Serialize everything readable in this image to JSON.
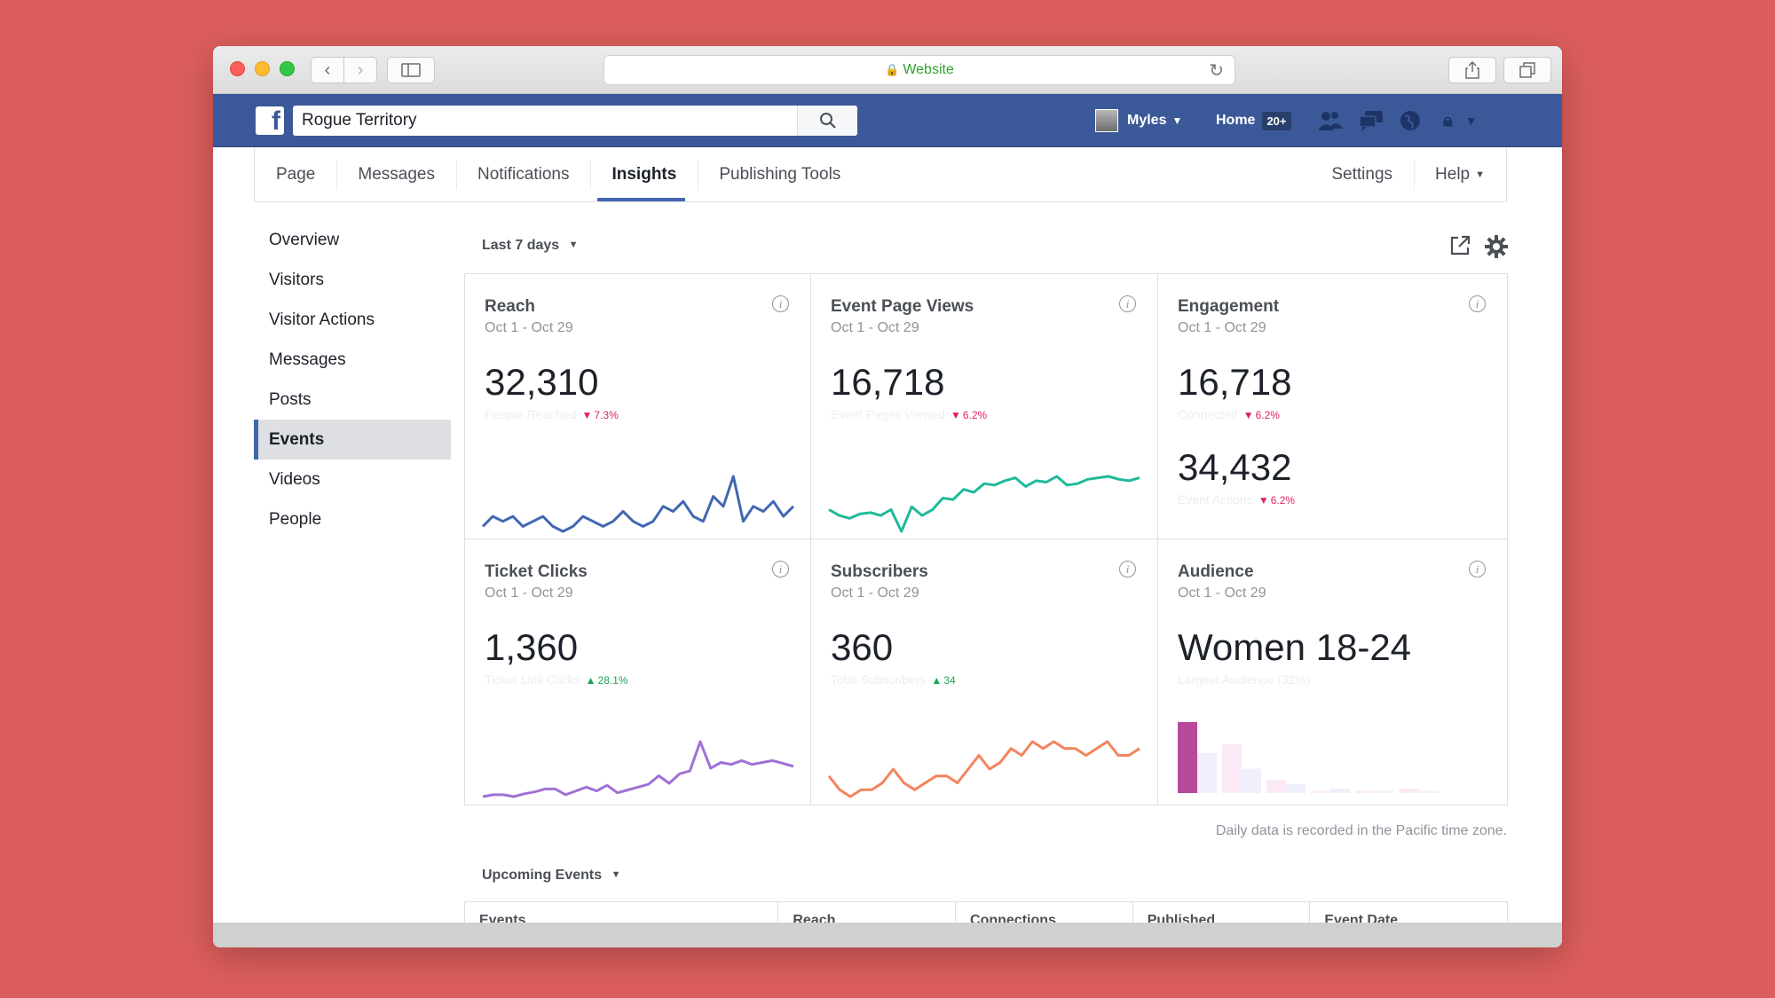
{
  "browser": {
    "url_label": "Website",
    "icons": {
      "back": "chevron-left-icon",
      "forward": "chevron-right-icon",
      "sidebar": "sidebar-icon",
      "reload": "reload-icon",
      "share": "share-icon",
      "tabs": "tabs-icon",
      "lock": "lock-icon"
    }
  },
  "facebook": {
    "logo": "f",
    "search_value": "Rogue Territory",
    "user_name": "Myles",
    "home_label": "Home",
    "home_badge": "20+"
  },
  "tabs": {
    "page": "Page",
    "messages": "Messages",
    "notifications": "Notifications",
    "insights": "Insights",
    "publishing_tools": "Publishing Tools",
    "settings": "Settings",
    "help": "Help"
  },
  "sidebar": {
    "items": [
      "Overview",
      "Visitors",
      "Visitor Actions",
      "Messages",
      "Posts",
      "Events",
      "Videos",
      "People"
    ],
    "active": "Events"
  },
  "range_label": "Last 7 days",
  "cards": {
    "reach": {
      "title": "Reach",
      "date": "Oct 1 - Oct 29",
      "value": "32,310",
      "sub": "People Reached",
      "change": "7.3%",
      "color": "#4267b2",
      "series": [
        40,
        42,
        41,
        42,
        40,
        41,
        42,
        40,
        39,
        40,
        42,
        41,
        40,
        41,
        43,
        41,
        40,
        41,
        44,
        43,
        45,
        42,
        41,
        46,
        44,
        50,
        41,
        44,
        43,
        45,
        42,
        44
      ]
    },
    "event_page_views": {
      "title": "Event Page Views",
      "date": "Oct 1 - Oct 29",
      "value": "16,718",
      "sub": "Event Pages Viewed",
      "change": "6.2%",
      "color": "#1fb99a",
      "series": [
        40,
        36,
        34,
        37,
        38,
        36,
        40,
        25,
        42,
        36,
        40,
        48,
        47,
        54,
        52,
        58,
        57,
        60,
        62,
        56,
        60,
        59,
        63,
        57,
        58,
        61,
        62,
        63,
        61,
        60,
        62
      ]
    },
    "engagement": {
      "title": "Engagement",
      "date": "Oct 1 - Oct 29",
      "value": "16,718",
      "sub": "Connected",
      "change": "6.2%",
      "value2": "34,432",
      "sub2": "Event Actions",
      "change2": "6.2%"
    },
    "ticket_clicks": {
      "title": "Ticket Clicks",
      "date": "Oct 1 - Oct 29",
      "value": "1,360",
      "sub": "Ticket Link Clicks",
      "change": "28.1%",
      "color": "#a070d6",
      "series": [
        20,
        22,
        22,
        20,
        23,
        25,
        28,
        28,
        22,
        26,
        30,
        26,
        32,
        24,
        27,
        30,
        33,
        42,
        34,
        44,
        47,
        78,
        50,
        56,
        54,
        58,
        54,
        56,
        58,
        55,
        52
      ]
    },
    "subscribers": {
      "title": "Subscribers",
      "date": "Oct 1 - Oct 29",
      "value": "360",
      "sub": "Total Subscribers",
      "change": "34",
      "color": "#f4845c",
      "series": [
        44,
        42,
        41,
        42,
        42,
        43,
        45,
        43,
        42,
        43,
        44,
        44,
        43,
        45,
        47,
        45,
        46,
        48,
        47,
        49,
        48,
        49,
        48,
        48,
        47,
        48,
        49,
        47,
        47,
        48
      ]
    },
    "audience": {
      "title": "Audience",
      "date": "Oct 1 - Oct 29",
      "value": "Women 18-24",
      "sub": "Largest Audience (32%)",
      "bars": [
        {
          "group": 1,
          "value": 32,
          "color": "#b8489a"
        },
        {
          "group": 1,
          "value": 18,
          "color": "#eff0fb"
        },
        {
          "group": 2,
          "value": 22,
          "color": "#fbeaf5"
        },
        {
          "group": 2,
          "value": 11,
          "color": "#eff0fb"
        },
        {
          "group": 3,
          "value": 6,
          "color": "#fbeaf5"
        },
        {
          "group": 3,
          "value": 4,
          "color": "#eff0fb"
        },
        {
          "group": 4,
          "value": 1,
          "color": "#fbeaf5"
        },
        {
          "group": 4,
          "value": 2,
          "color": "#eff0fb"
        },
        {
          "group": 5,
          "value": 1,
          "color": "#fbeaf5"
        },
        {
          "group": 5,
          "value": 1,
          "color": "#eff0fb"
        },
        {
          "group": 6,
          "value": 2,
          "color": "#fbeaf5"
        },
        {
          "group": 6,
          "value": 1,
          "color": "#eff0fb"
        }
      ]
    }
  },
  "footnote": "Daily data is recorded in the Pacific time zone.",
  "upcoming": {
    "label": "Upcoming Events",
    "columns": [
      "Events",
      "Reach",
      "Connections",
      "Published",
      "Event Date"
    ]
  }
}
